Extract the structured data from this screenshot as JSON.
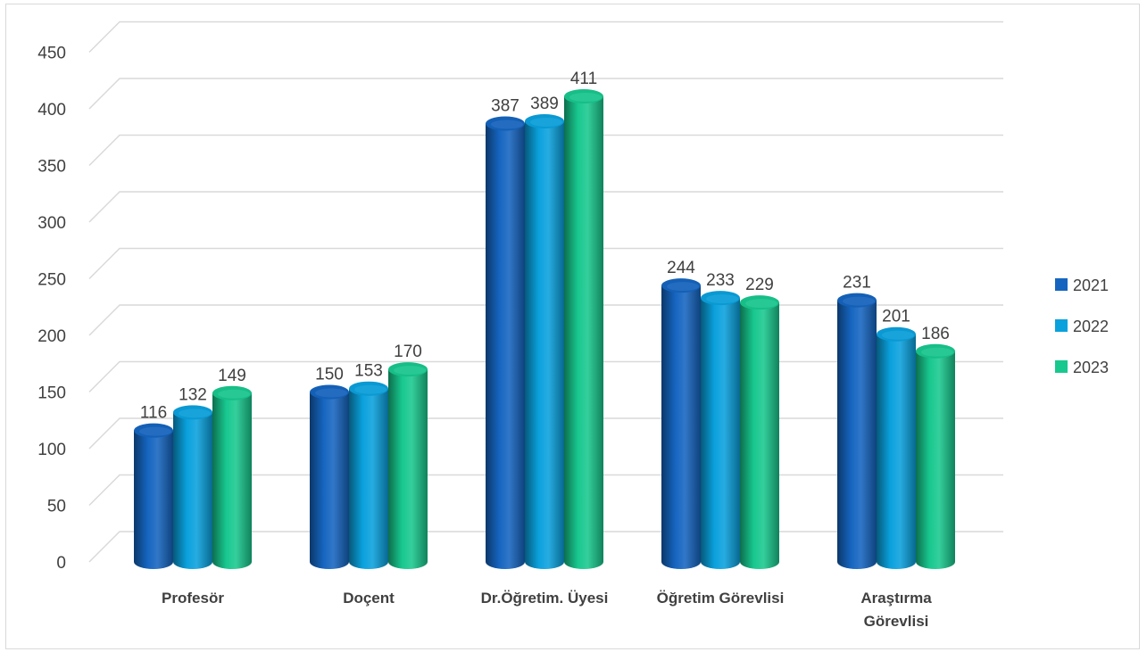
{
  "chart_data": {
    "type": "bar",
    "title": "",
    "xlabel": "",
    "ylabel": "",
    "ylim": [
      0,
      450
    ],
    "yticks": [
      "0",
      "50",
      "100",
      "150",
      "200",
      "250",
      "300",
      "350",
      "400",
      "450"
    ],
    "categories": [
      [
        "Profesör"
      ],
      [
        "Doçent"
      ],
      [
        "Dr.Öğretim. Üyesi"
      ],
      [
        "Öğretim Görevlisi"
      ],
      [
        "Araştırma",
        "Görevlisi"
      ]
    ],
    "series": [
      {
        "name": "2021",
        "values": [
          116,
          150,
          387,
          244,
          231
        ],
        "color": "#1565c0"
      },
      {
        "name": "2022",
        "values": [
          132,
          153,
          389,
          233,
          201
        ],
        "color": "#0aa1dd"
      },
      {
        "name": "2023",
        "values": [
          149,
          170,
          411,
          229,
          186
        ],
        "color": "#18c88e"
      }
    ],
    "grid": true,
    "legend_position": "right"
  }
}
